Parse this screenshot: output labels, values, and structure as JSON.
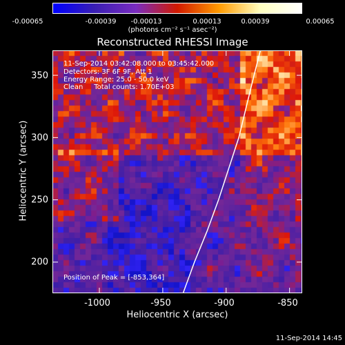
{
  "colorbar": {
    "ticks": [
      "-0.00065",
      "-0.00039",
      "-0.00013",
      "0.00013",
      "0.00039",
      "0.00065"
    ],
    "units": "(photons cm⁻² s⁻¹ asec⁻²)",
    "colors": [
      "#0000ff",
      "#3a1fb3",
      "#7a2cc0",
      "#d21a00",
      "#ff9a00",
      "#ffffc0",
      "#ffffff"
    ]
  },
  "chart_data": {
    "type": "heatmap",
    "title": "Reconstructed RHESSI Image",
    "xlabel": "Heliocentric X (arcsec)",
    "ylabel": "Heliocentric Y (arcsec)",
    "xlim": [
      -1037,
      -840
    ],
    "ylim": [
      175,
      370
    ],
    "xticks": [
      "-1000",
      "-950",
      "-900",
      "-850"
    ],
    "xtick_values": [
      -1000,
      -950,
      -900,
      -850
    ],
    "yticks": [
      "200",
      "250",
      "300",
      "350"
    ],
    "ytick_values": [
      200,
      250,
      300,
      350
    ],
    "limb_curve": [
      [
        -934,
        175
      ],
      [
        -925,
        200
      ],
      [
        -915,
        225
      ],
      [
        -906,
        250
      ],
      [
        -898,
        275
      ],
      [
        -890,
        300
      ],
      [
        -884,
        325
      ],
      [
        -878,
        350
      ],
      [
        -873,
        370
      ]
    ],
    "peak": [
      -853,
      364
    ],
    "annotations": [
      "11-Sep-2014 03:42:08.000 to 03:45:42.000",
      "Detectors: 3F 6F 9F, Att 1",
      "Energy Range: 25.0 - 50.0 keV",
      "Clean     Total counts: 1.70E+03"
    ],
    "peak_label": "Position of Peak = [-853,364]"
  },
  "timestamp": "11-Sep-2014 14:45"
}
